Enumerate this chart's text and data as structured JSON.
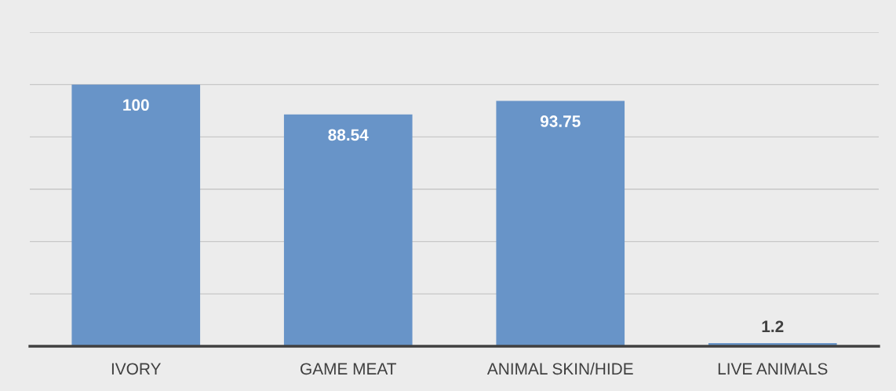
{
  "chart_data": {
    "type": "bar",
    "categories": [
      "IVORY",
      "GAME MEAT",
      "ANIMAL SKIN/HIDE",
      "LIVE ANIMALS"
    ],
    "values": [
      100,
      88.54,
      93.75,
      1.2
    ],
    "color": "#6894c8",
    "data_labels": true,
    "ylim": [
      0,
      120
    ],
    "yticks": [
      {
        "value": 0,
        "label": null
      },
      {
        "value": 20,
        "label": null
      },
      {
        "value": 40,
        "label": null
      },
      {
        "value": 60,
        "label": null
      },
      {
        "value": 80,
        "label": null
      },
      {
        "value": 100,
        "label": null
      },
      {
        "value": 120,
        "label": null
      }
    ],
    "grid": "y",
    "tick_labels": "x"
  }
}
